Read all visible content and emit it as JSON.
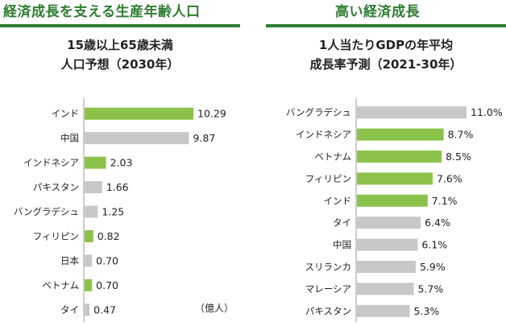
{
  "colors": {
    "highlight": "#8bc34a",
    "neutral": "#c8c8c8",
    "accent": "#2e7d32",
    "axis": "#999999"
  },
  "left_panel": {
    "header": "経済成長を支える生産年齢人口",
    "title_line1": "15歳以上65歳未満",
    "title_line2": "人口予想（2030年）",
    "unit_note": "（億人）"
  },
  "right_panel": {
    "header": "高い経済成長",
    "title_line1": "1人当たりGDPの年平均",
    "title_line2": "成長率予測（2021-30年）"
  },
  "chart_data": [
    {
      "type": "bar",
      "orientation": "horizontal",
      "title": "15歳以上65歳未満 人口予想（2030年）",
      "unit": "億人",
      "categories": [
        "インド",
        "中国",
        "インドネシア",
        "パキスタン",
        "バングラデシュ",
        "フィリピン",
        "日本",
        "ベトナム",
        "タイ"
      ],
      "values": [
        10.29,
        9.87,
        2.03,
        1.66,
        1.25,
        0.82,
        0.7,
        0.7,
        0.47
      ],
      "labels": [
        "10.29",
        "9.87",
        "2.03",
        "1.66",
        "1.25",
        "0.82",
        "0.70",
        "0.70",
        "0.47"
      ],
      "highlighted": [
        true,
        false,
        true,
        false,
        false,
        true,
        false,
        true,
        false
      ],
      "xlim": [
        0,
        10.29
      ]
    },
    {
      "type": "bar",
      "orientation": "horizontal",
      "title": "1人当たりGDPの年平均 成長率予測（2021-30年）",
      "unit": "%",
      "categories": [
        "バングラデシュ",
        "インドネシア",
        "ベトナム",
        "フィリピン",
        "インド",
        "タイ",
        "中国",
        "スリランカ",
        "マレーシア",
        "パキスタン"
      ],
      "values": [
        11.0,
        8.7,
        8.5,
        7.6,
        7.1,
        6.4,
        6.1,
        5.9,
        5.7,
        5.3
      ],
      "labels": [
        "11.0%",
        "8.7%",
        "8.5%",
        "7.6%",
        "7.1%",
        "6.4%",
        "6.1%",
        "5.9%",
        "5.7%",
        "5.3%"
      ],
      "highlighted": [
        false,
        true,
        true,
        true,
        true,
        false,
        false,
        false,
        false,
        false
      ],
      "xlim": [
        0,
        11.0
      ]
    }
  ]
}
